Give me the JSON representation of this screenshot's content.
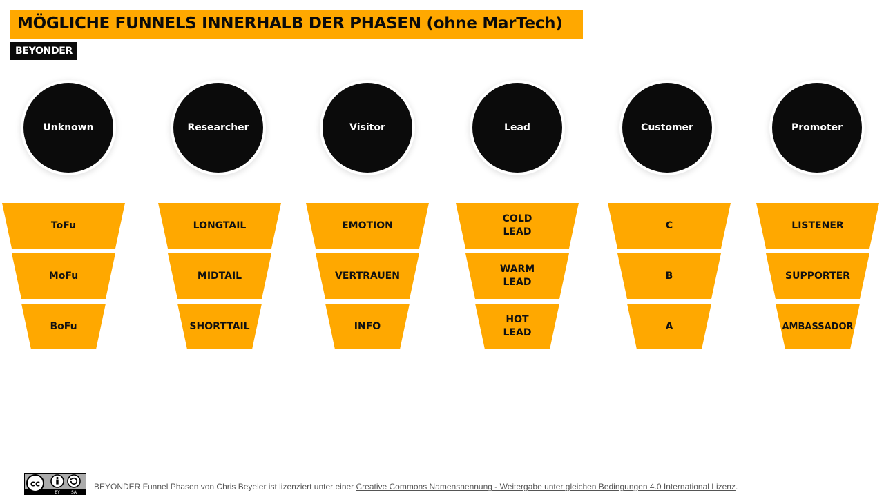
{
  "title": "MÖGLICHE FUNNELS INNERHALB DER PHASEN (ohne MarTech)",
  "logo": "BEYONDER",
  "phases": [
    "Unknown",
    "Researcher",
    "Visitor",
    "Lead",
    "Customer",
    "Promoter"
  ],
  "funnels": [
    [
      "ToFu",
      "MoFu",
      "BoFu"
    ],
    [
      "LONGTAIL",
      "MIDTAIL",
      "SHORTTAIL"
    ],
    [
      "EMOTION",
      "VERTRAUEN",
      "INFO"
    ],
    [
      "COLD\nLEAD",
      "WARM\nLEAD",
      "HOT\nLEAD"
    ],
    [
      "C",
      "B",
      "A"
    ],
    [
      "LISTENER",
      "SUPPORTER",
      "AMBASSADOR"
    ]
  ],
  "colors": {
    "accent": "#FFA800",
    "dark": "#0b0b0b"
  },
  "footer": {
    "badge_icon": "cc-by-sa-icon",
    "text_before": "BEYONDER Funnel Phasen von Chris Beyeler ist lizenziert unter einer ",
    "link": "Creative Commons Namensnennung - Weitergabe unter gleichen Bedingungen 4.0 International Lizenz",
    "text_after": "."
  }
}
